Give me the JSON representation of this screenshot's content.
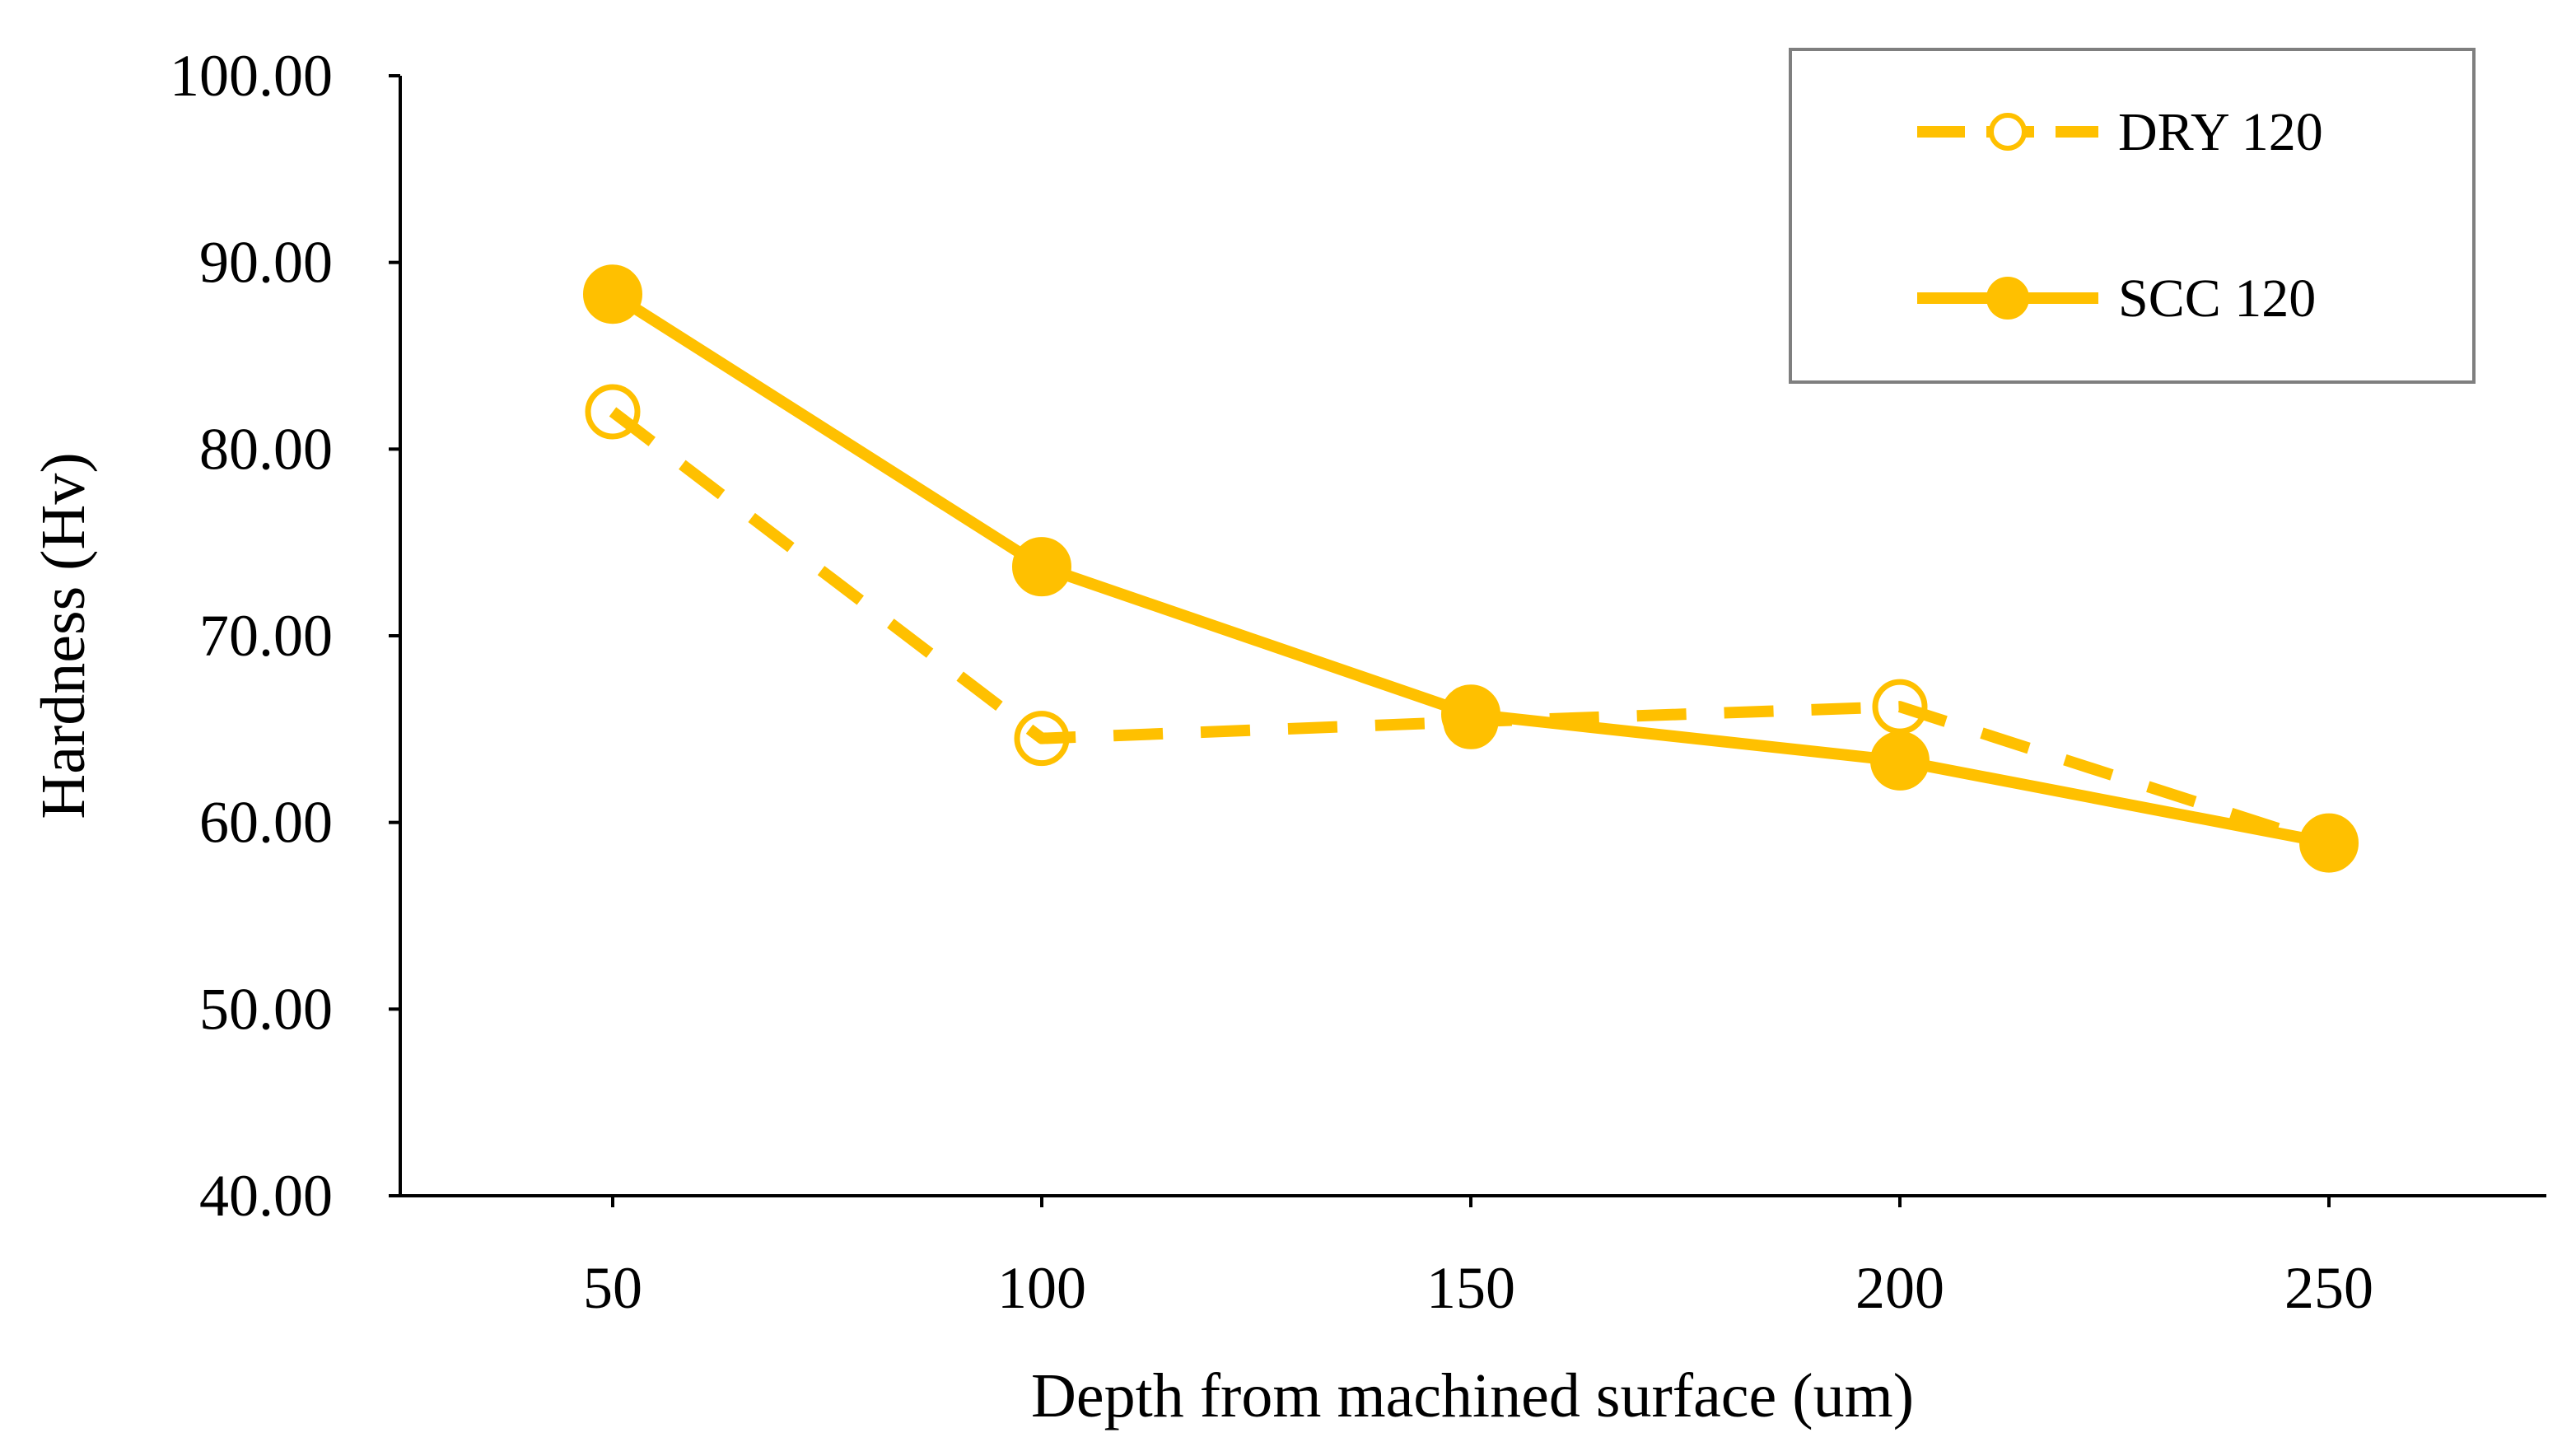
{
  "chart_data": {
    "type": "line",
    "title": "",
    "xlabel": "Depth from machined surface (um)",
    "ylabel": "Hardness (Hv)",
    "categories": [
      "50",
      "100",
      "150",
      "200",
      "250"
    ],
    "x": [
      50,
      100,
      150,
      200,
      250
    ],
    "ylim": [
      40,
      100
    ],
    "yticks": [
      "40.00",
      "50.00",
      "60.00",
      "70.00",
      "80.00",
      "90.00",
      "100.00"
    ],
    "ytick_values": [
      40,
      50,
      60,
      70,
      80,
      90,
      100
    ],
    "grid": false,
    "legend_position": "top-right",
    "series": [
      {
        "name": "DRY 120",
        "values": [
          82.0,
          64.5,
          65.4,
          66.2,
          58.8
        ],
        "line_style": "dashed",
        "marker": "open-circle",
        "color": "#ffc000"
      },
      {
        "name": "SCC 120",
        "values": [
          88.3,
          73.7,
          65.8,
          63.3,
          58.9
        ],
        "line_style": "solid",
        "marker": "filled-circle",
        "color": "#ffc000"
      }
    ]
  }
}
